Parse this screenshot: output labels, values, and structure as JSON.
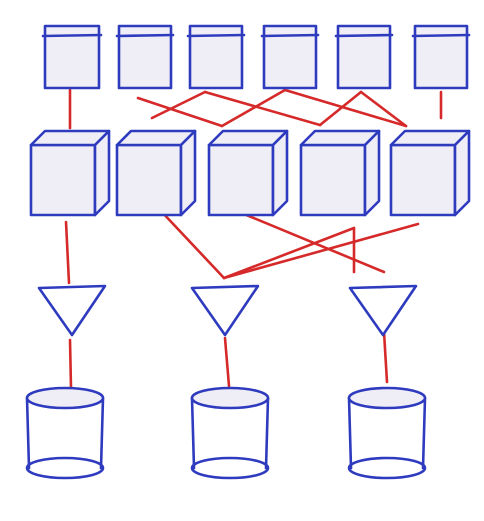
{
  "colors": {
    "node_stroke": "#2f3bbf",
    "node_fill": "#efeef6",
    "edge": "#d62a2a",
    "background": "#ffffff"
  },
  "diagram": {
    "layers": [
      {
        "id": "top",
        "shape": "box-with-header",
        "count": 6
      },
      {
        "id": "middle",
        "shape": "cube",
        "count": 5
      },
      {
        "id": "funnels",
        "shape": "inverted-triangle",
        "count": 3
      },
      {
        "id": "storage",
        "shape": "cylinder",
        "count": 3
      }
    ],
    "edges": [
      {
        "from": "top-0",
        "to": "cube-0"
      },
      {
        "from": "top-1",
        "to": "cube-2"
      },
      {
        "from": "top-2",
        "to": "cube-1"
      },
      {
        "from": "top-2",
        "to": "cube-3"
      },
      {
        "from": "top-3",
        "to": "cube-2"
      },
      {
        "from": "top-3",
        "to": "cube-4"
      },
      {
        "from": "top-4",
        "to": "cube-3"
      },
      {
        "from": "top-4",
        "to": "cube-4"
      },
      {
        "from": "top-5",
        "to": "cube-4"
      },
      {
        "from": "cube-0",
        "to": "funnel-0"
      },
      {
        "from": "cube-1",
        "to": "funnel-1"
      },
      {
        "from": "cube-2",
        "to": "funnel-2"
      },
      {
        "from": "cube-3",
        "to": "funnel-1"
      },
      {
        "from": "cube-3",
        "to": "funnel-2"
      },
      {
        "from": "cube-4",
        "to": "funnel-1"
      },
      {
        "from": "funnel-0",
        "to": "storage-0"
      },
      {
        "from": "funnel-1",
        "to": "storage-1"
      },
      {
        "from": "funnel-2",
        "to": "storage-2"
      }
    ]
  }
}
